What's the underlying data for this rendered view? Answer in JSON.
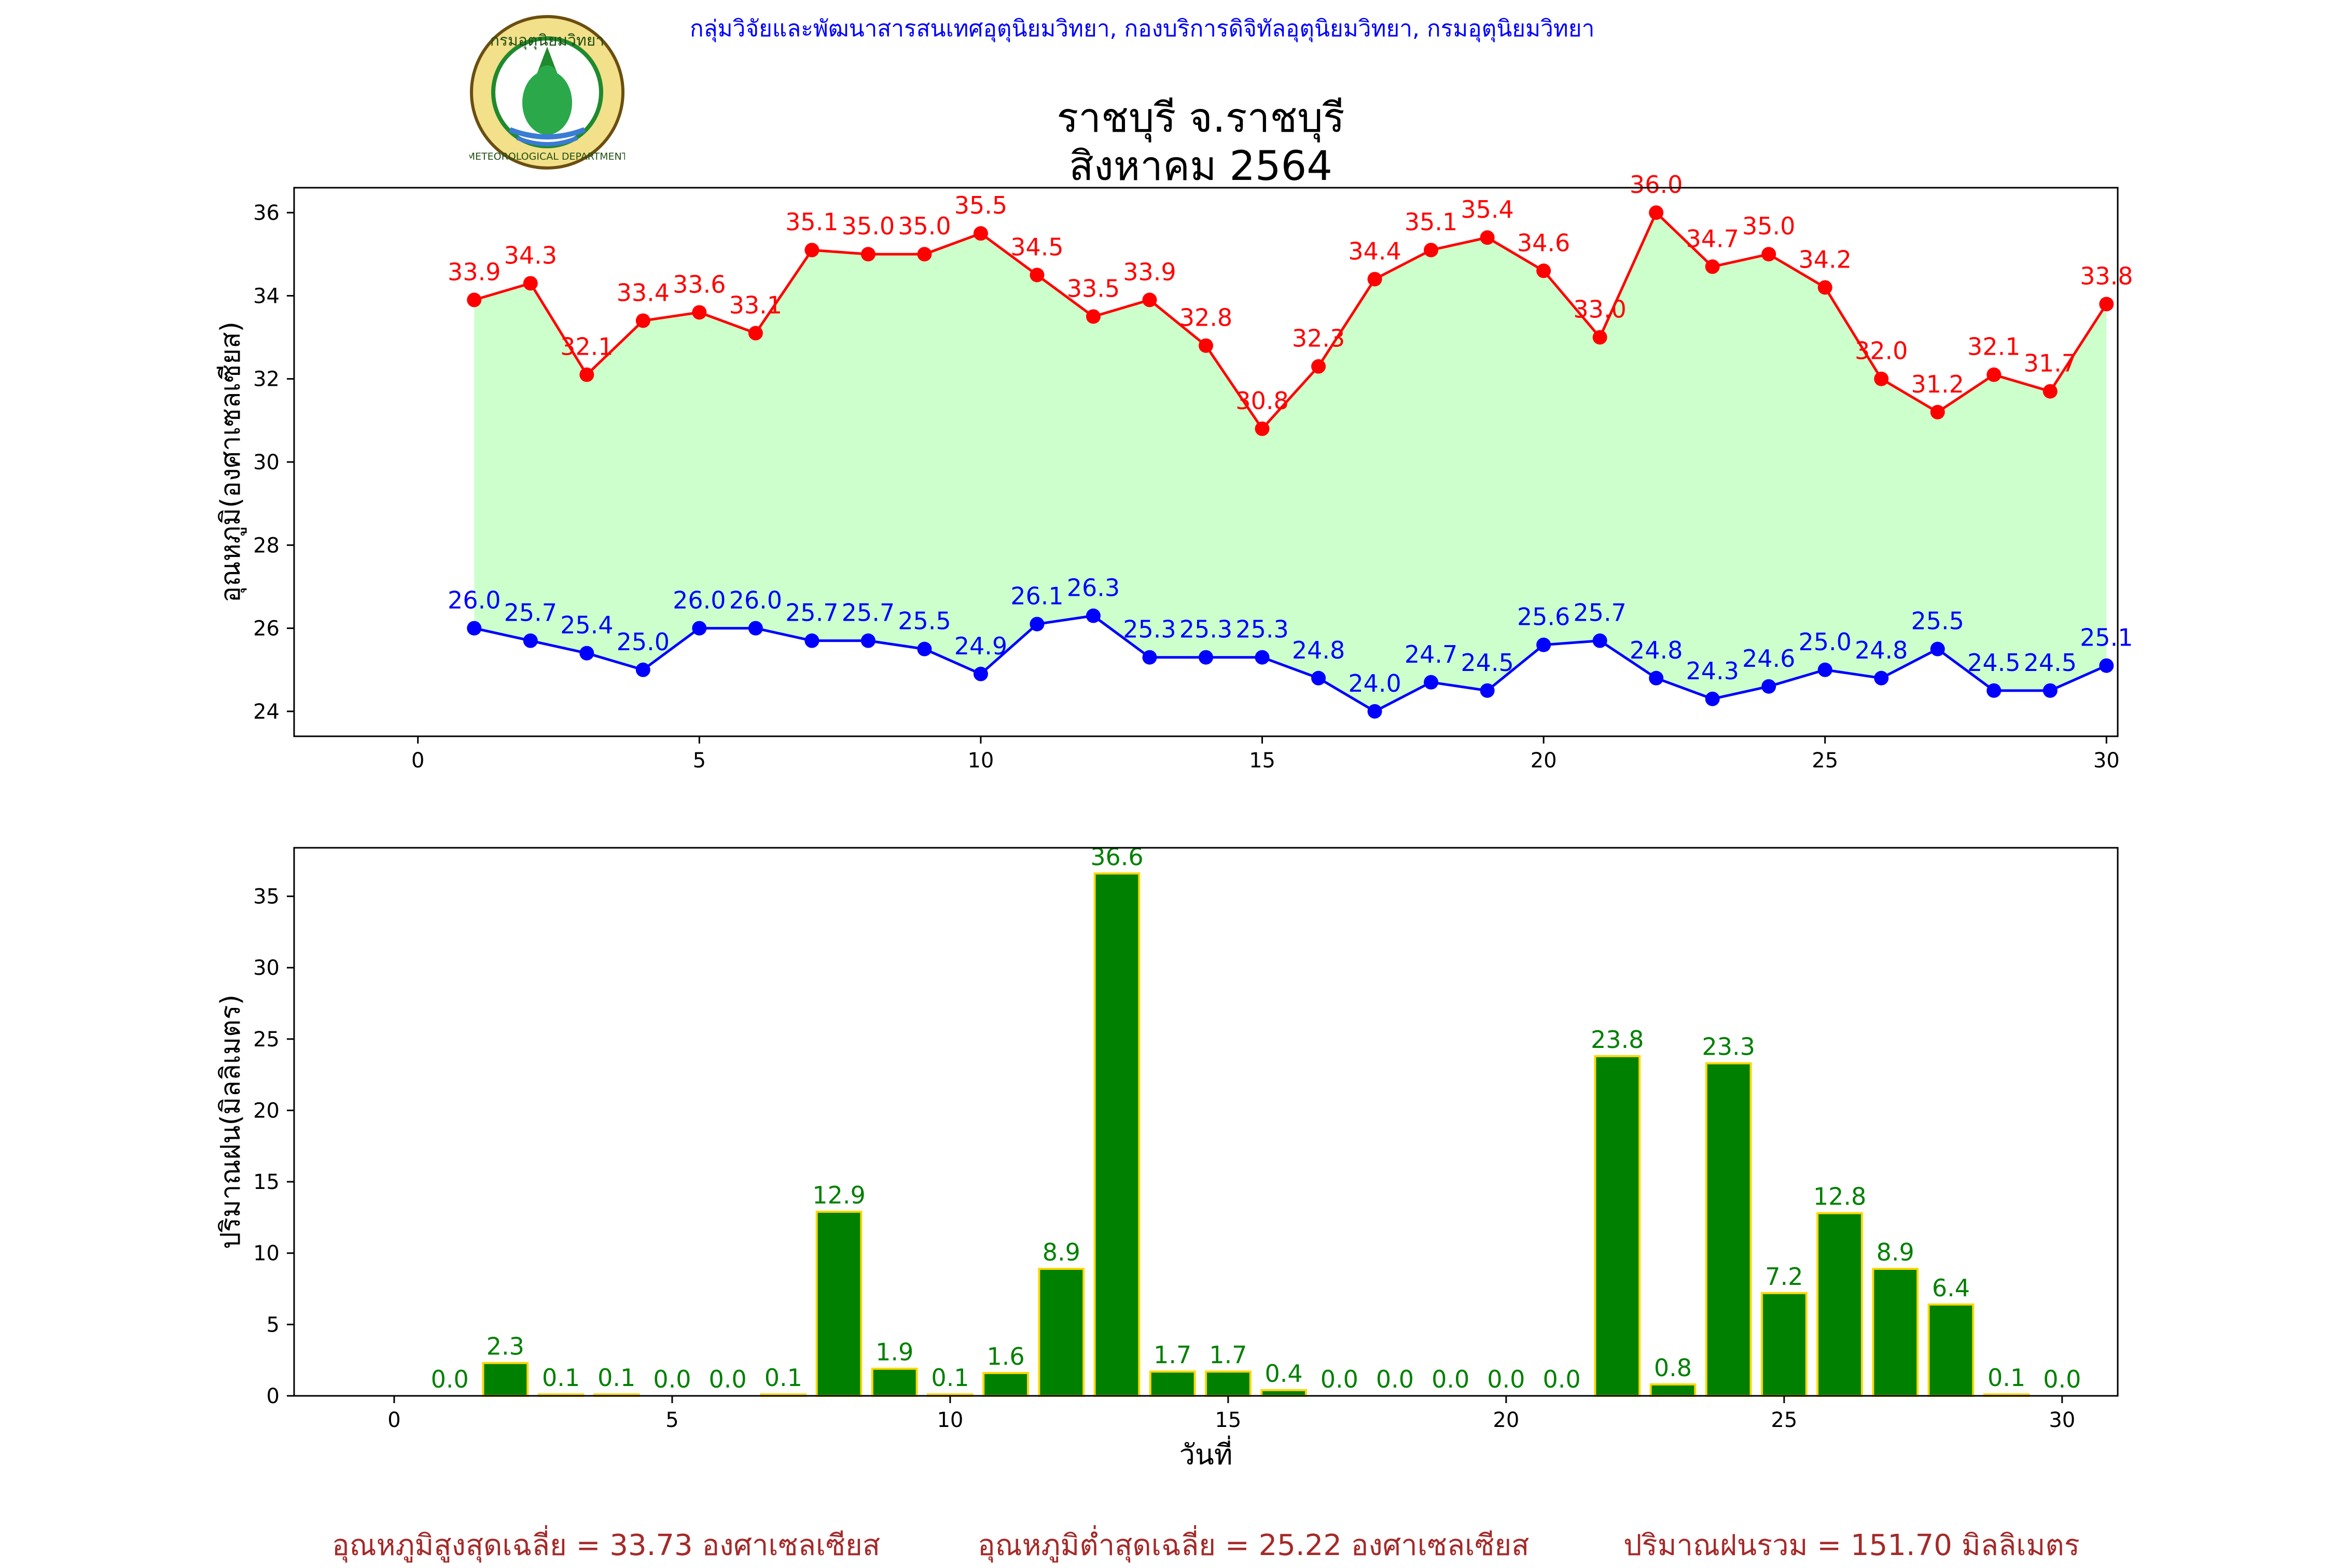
{
  "header": {
    "org_text": "กลุ่มวิจัยและพัฒนาสารสนเทศอุตุนิยมวิทยา, กองบริการดิจิทัลอุตุนิยมวิทยา, กรมอุตุนิยมวิทยา",
    "logo_text_top": "กรมอุตุนิยมวิทยา",
    "logo_text_bottom": "METEOROLOGICAL DEPARTMENT"
  },
  "title": {
    "line1": "ราชบุรี จ.ราชบุรี",
    "line2": "สิงหาคม 2564"
  },
  "summary": {
    "avg_max": "อุณหภูมิสูงสุดเฉลี่ย = 33.73 องศาเซลเซียส",
    "avg_min": "อุณหภูมิต่ำสุดเฉลี่ย = 25.22 องศาเซลเซียส",
    "total_rain": "ปริมาณฝนรวม = 151.70 มิลลิเมตร"
  },
  "colors": {
    "max_line": "#ff0000",
    "min_line": "#0000ff",
    "band_fill": "#ccffcc",
    "bar_fill": "#008000",
    "bar_edge": "#ffd700",
    "bar_label": "#008000"
  },
  "chart_data": [
    {
      "type": "line",
      "ylabel": "อุณหภูมิ(องศาเซลเซียส)",
      "xlim": [
        -2.2,
        30.2
      ],
      "ylim": [
        23.4,
        36.6
      ],
      "xticks": [
        0,
        5,
        10,
        15,
        20,
        25,
        30
      ],
      "yticks": [
        24,
        26,
        28,
        30,
        32,
        34,
        36
      ],
      "fill_between": true,
      "x": [
        1,
        2,
        3,
        4,
        5,
        6,
        7,
        8,
        9,
        10,
        11,
        12,
        13,
        14,
        15,
        16,
        17,
        18,
        19,
        20,
        21,
        22,
        23,
        24,
        25,
        26,
        27,
        28,
        29,
        30
      ],
      "series": [
        {
          "name": "max",
          "values": [
            33.9,
            34.3,
            32.1,
            33.4,
            33.6,
            33.1,
            35.1,
            35.0,
            35.0,
            35.5,
            34.5,
            33.5,
            33.9,
            32.8,
            30.8,
            32.3,
            34.4,
            35.1,
            35.4,
            34.6,
            33.0,
            36.0,
            34.7,
            35.0,
            34.2,
            32.0,
            31.2,
            32.1,
            31.7,
            33.8
          ]
        },
        {
          "name": "min",
          "values": [
            26.0,
            25.7,
            25.4,
            25.0,
            26.0,
            26.0,
            25.7,
            25.7,
            25.5,
            24.9,
            26.1,
            26.3,
            25.3,
            25.3,
            25.3,
            24.8,
            24.0,
            24.7,
            24.5,
            25.6,
            25.7,
            24.8,
            24.3,
            24.6,
            25.0,
            24.8,
            25.5,
            24.5,
            24.5,
            25.1
          ]
        }
      ]
    },
    {
      "type": "bar",
      "xlabel": "วันที่",
      "ylabel": "ปริมาณฝน(มิลลิเมตร)",
      "xlim": [
        -1.8,
        31.0
      ],
      "ylim": [
        0,
        38.4
      ],
      "xticks": [
        0,
        5,
        10,
        15,
        20,
        25,
        30
      ],
      "yticks": [
        0,
        5,
        10,
        15,
        20,
        25,
        30,
        35
      ],
      "x": [
        1,
        2,
        3,
        4,
        5,
        6,
        7,
        8,
        9,
        10,
        11,
        12,
        13,
        14,
        15,
        16,
        17,
        18,
        19,
        20,
        21,
        22,
        23,
        24,
        25,
        26,
        27,
        28,
        29,
        30
      ],
      "values": [
        0.0,
        2.3,
        0.1,
        0.1,
        0.0,
        0.0,
        0.1,
        12.9,
        1.9,
        0.1,
        1.6,
        8.9,
        36.6,
        1.7,
        1.7,
        0.4,
        0.0,
        0.0,
        0.0,
        0.0,
        0.0,
        23.8,
        0.8,
        23.3,
        7.2,
        12.8,
        8.9,
        6.4,
        0.1,
        0.0
      ]
    }
  ]
}
